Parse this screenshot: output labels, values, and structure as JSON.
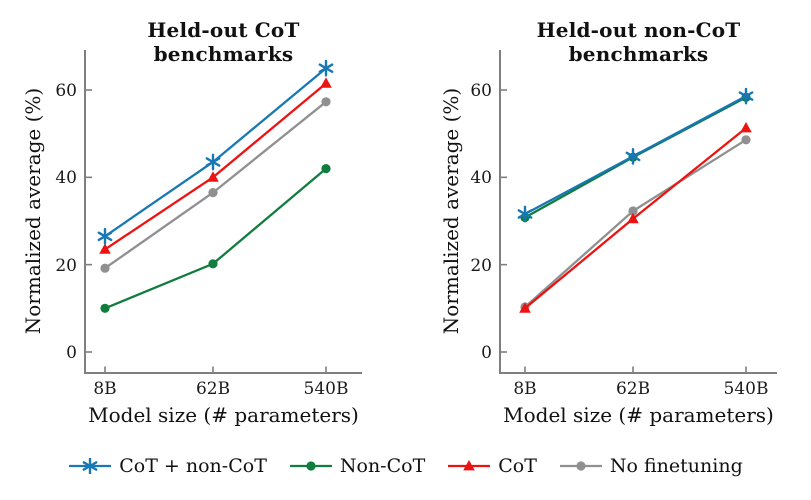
{
  "chart_data": [
    {
      "type": "line",
      "title": "Held-out CoT benchmarks",
      "xlabel": "Model size (# parameters)",
      "ylabel": "Normalized average (%)",
      "x_scale": "log",
      "categories": [
        "8B",
        "62B",
        "540B"
      ],
      "yticks": [
        0,
        20,
        40,
        60
      ],
      "ylim": [
        0,
        69
      ],
      "grid": false,
      "legend_position": "bottom-center-shared",
      "series": [
        {
          "name": "CoT + non-CoT",
          "marker": "star",
          "color": "#1778b5",
          "values": [
            26.5,
            43.5,
            65
          ]
        },
        {
          "name": "Non-CoT",
          "marker": "circle",
          "color": "#107d3e",
          "values": [
            10,
            20.2,
            42
          ]
        },
        {
          "name": "CoT",
          "marker": "triangle",
          "color": "#ec1313",
          "values": [
            23.5,
            40,
            61.5
          ]
        },
        {
          "name": "No finetuning",
          "marker": "circle",
          "color": "#909090",
          "values": [
            19.2,
            36.5,
            57.3
          ]
        }
      ]
    },
    {
      "type": "line",
      "title": "Held-out non-CoT benchmarks",
      "xlabel": "Model size (# parameters)",
      "ylabel": "Normalized average (%)",
      "x_scale": "log",
      "categories": [
        "8B",
        "62B",
        "540B"
      ],
      "yticks": [
        0,
        20,
        40,
        60
      ],
      "ylim": [
        0,
        69
      ],
      "grid": false,
      "legend_position": "bottom-center-shared",
      "series": [
        {
          "name": "CoT + non-CoT",
          "marker": "star",
          "color": "#1778b5",
          "values": [
            31.6,
            44.8,
            58.6
          ]
        },
        {
          "name": "Non-CoT",
          "marker": "circle",
          "color": "#107d3e",
          "values": [
            30.8,
            44.6,
            58.3
          ]
        },
        {
          "name": "CoT",
          "marker": "triangle",
          "color": "#ec1313",
          "values": [
            10,
            30.5,
            51.3
          ]
        },
        {
          "name": "No finetuning",
          "marker": "circle",
          "color": "#909090",
          "values": [
            10.3,
            32.3,
            48.6
          ]
        }
      ]
    }
  ],
  "axis_style": {
    "spine_color": "#7f7f7f",
    "tick_color": "#7f7f7f"
  }
}
